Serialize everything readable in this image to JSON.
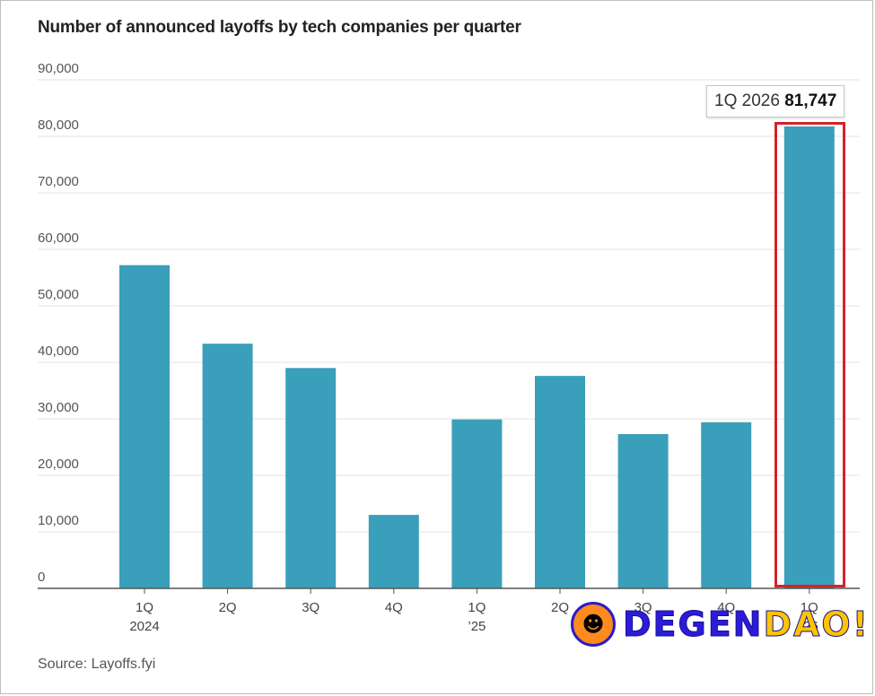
{
  "title": "Number of announced layoffs by tech companies per quarter",
  "source": "Source: Layoffs.fyi",
  "tooltip": {
    "label": "1Q 2026",
    "value": "81,747"
  },
  "watermark": {
    "part1": "DEGEN",
    "part2": "DAO!"
  },
  "colors": {
    "bar": "#3a9fba",
    "highlight": "#d2232a",
    "grid": "#e3e3e3"
  },
  "chart_data": {
    "type": "bar",
    "title": "Number of announced layoffs by tech companies per quarter",
    "xlabel": "",
    "ylabel": "",
    "ylim": [
      0,
      90000
    ],
    "yticks": [
      0,
      10000,
      20000,
      30000,
      40000,
      50000,
      60000,
      70000,
      80000,
      90000
    ],
    "ytick_labels": [
      "0",
      "10,000",
      "20,000",
      "30,000",
      "40,000",
      "50,000",
      "60,000",
      "70,000",
      "80,000",
      "90,000"
    ],
    "categories": [
      "1Q 2024",
      "2Q",
      "3Q",
      "4Q",
      "1Q ’25",
      "2Q",
      "3Q",
      "4Q",
      "1Q ’26"
    ],
    "category_lines": [
      [
        "1Q",
        "2024"
      ],
      [
        "2Q"
      ],
      [
        "3Q"
      ],
      [
        "4Q"
      ],
      [
        "1Q",
        "’25"
      ],
      [
        "2Q"
      ],
      [
        "3Q"
      ],
      [
        "4Q"
      ],
      [
        "1Q",
        "’26"
      ]
    ],
    "values": [
      57200,
      43300,
      39000,
      13000,
      29900,
      37600,
      27300,
      29400,
      81747
    ],
    "grid": true,
    "highlighted_index": 8
  }
}
